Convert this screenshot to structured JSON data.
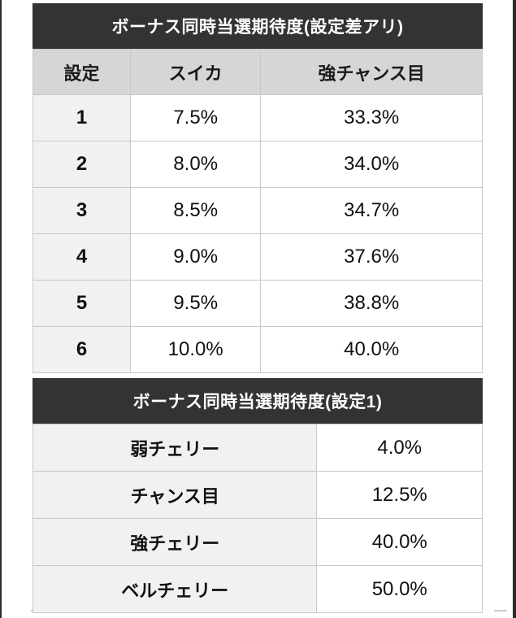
{
  "colors": {
    "title_bar_bg": "#333333",
    "title_bar_text": "#ffffff",
    "column_header_bg": "#d6d6d6",
    "label_cell_bg": "#f1f1f1",
    "cell_bg": "#ffffff",
    "border": "#c8c8c8",
    "frame": "#2d2d2d"
  },
  "table1": {
    "title": "ボーナス同時当選期待度(設定差アリ)",
    "headers": [
      "設定",
      "スイカ",
      "強チャンス目"
    ],
    "rows": [
      [
        "1",
        "7.5%",
        "33.3%"
      ],
      [
        "2",
        "8.0%",
        "34.0%"
      ],
      [
        "3",
        "8.5%",
        "34.7%"
      ],
      [
        "4",
        "9.0%",
        "37.6%"
      ],
      [
        "5",
        "9.5%",
        "38.8%"
      ],
      [
        "6",
        "10.0%",
        "40.0%"
      ]
    ]
  },
  "table2": {
    "title": "ボーナス同時当選期待度(設定1)",
    "rows": [
      [
        "弱チェリー",
        "4.0%"
      ],
      [
        "チャンス目",
        "12.5%"
      ],
      [
        "強チェリー",
        "40.0%"
      ],
      [
        "ベルチェリー",
        "50.0%"
      ]
    ]
  }
}
